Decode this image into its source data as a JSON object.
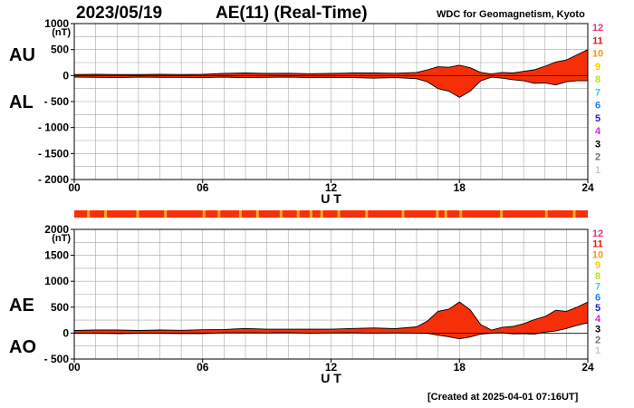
{
  "header": {
    "date": "2023/05/19",
    "title": "AE(11) (Real-Time)",
    "source": "WDC for Geomagnetism, Kyoto"
  },
  "footer": {
    "created": "[Created at 2025-04-01 07:16UT]"
  },
  "colors": {
    "fill": "#f72f08",
    "fill_alt": "#f7a820",
    "grid": "#a8a8a8",
    "curve": "#000000"
  },
  "station_legend": [
    {
      "label": "12",
      "color": "#f7306e"
    },
    {
      "label": "11",
      "color": "#f01010"
    },
    {
      "label": "10",
      "color": "#f79a10"
    },
    {
      "label": "9",
      "color": "#f2d000"
    },
    {
      "label": "8",
      "color": "#b8e020"
    },
    {
      "label": "7",
      "color": "#30d0e8"
    },
    {
      "label": "6",
      "color": "#1e7ef0"
    },
    {
      "label": "5",
      "color": "#2020c8"
    },
    {
      "label": "4",
      "color": "#e020e0"
    },
    {
      "label": "3",
      "color": "#000000"
    },
    {
      "label": "2",
      "color": "#707070"
    },
    {
      "label": "1",
      "color": "#c8c8c8"
    }
  ],
  "chart_data": [
    {
      "type": "area",
      "name": "AU/AL",
      "left_labels": [
        "AU",
        "AL"
      ],
      "ylabel_unit": "(nT)",
      "xlabel": "U T",
      "xlim": [
        0,
        24
      ],
      "ylim": [
        -2000,
        1000
      ],
      "x_ticks": [
        0,
        6,
        12,
        18,
        24
      ],
      "x_tick_labels": [
        "00",
        "06",
        "12",
        "18",
        "24"
      ],
      "y_ticks": [
        1000,
        500,
        0,
        -500,
        -1000,
        -1500,
        -2000
      ],
      "y_tick_labels": [
        "1000",
        "500",
        "0",
        "- 500",
        "- 1000",
        "- 1500",
        "- 2000"
      ],
      "grid": true,
      "x": [
        0,
        1,
        2,
        3,
        4,
        5,
        6,
        7,
        8,
        9,
        10,
        11,
        12,
        13,
        14,
        15,
        16,
        16.5,
        17,
        17.5,
        18,
        18.5,
        19,
        19.5,
        20,
        20.5,
        21,
        21.5,
        22,
        22.5,
        23,
        23.5,
        24
      ],
      "series": [
        {
          "name": "AU",
          "values": [
            20,
            25,
            20,
            20,
            25,
            20,
            25,
            40,
            50,
            40,
            45,
            35,
            40,
            50,
            50,
            45,
            60,
            110,
            170,
            160,
            200,
            150,
            60,
            30,
            60,
            50,
            80,
            110,
            180,
            260,
            300,
            400,
            500
          ]
        },
        {
          "name": "AL",
          "values": [
            -30,
            -35,
            -40,
            -30,
            -35,
            -35,
            -40,
            -30,
            -40,
            -35,
            -30,
            -40,
            -35,
            -40,
            -50,
            -40,
            -60,
            -120,
            -250,
            -300,
            -420,
            -300,
            -100,
            -30,
            -50,
            -80,
            -100,
            -150,
            -140,
            -180,
            -120,
            -100,
            -100
          ]
        }
      ]
    },
    {
      "type": "area",
      "name": "AE/AO",
      "left_labels": [
        "AE",
        "AO"
      ],
      "ylabel_unit": "(nT)",
      "xlabel": "U T",
      "xlim": [
        0,
        24
      ],
      "ylim": [
        -500,
        2000
      ],
      "x_ticks": [
        0,
        6,
        12,
        18,
        24
      ],
      "x_tick_labels": [
        "00",
        "06",
        "12",
        "18",
        "24"
      ],
      "y_ticks": [
        2000,
        1500,
        1000,
        500,
        0,
        -500
      ],
      "y_tick_labels": [
        "2000",
        "1500",
        "1000",
        "500",
        "0",
        "- 500"
      ],
      "grid": true,
      "x": [
        0,
        1,
        2,
        3,
        4,
        5,
        6,
        7,
        8,
        9,
        10,
        11,
        12,
        13,
        14,
        15,
        16,
        16.5,
        17,
        17.5,
        18,
        18.5,
        19,
        19.5,
        20,
        20.5,
        21,
        21.5,
        22,
        22.5,
        23,
        23.5,
        24
      ],
      "series": [
        {
          "name": "AE",
          "values": [
            50,
            60,
            60,
            50,
            60,
            55,
            65,
            70,
            90,
            75,
            75,
            75,
            75,
            90,
            100,
            85,
            120,
            230,
            420,
            460,
            600,
            450,
            160,
            60,
            110,
            130,
            180,
            260,
            320,
            440,
            420,
            500,
            600
          ]
        },
        {
          "name": "AO",
          "values": [
            -5,
            -5,
            -10,
            -5,
            -5,
            -8,
            -8,
            5,
            5,
            3,
            8,
            -3,
            3,
            5,
            0,
            3,
            0,
            -5,
            -40,
            -70,
            -110,
            -75,
            -20,
            0,
            5,
            -15,
            -10,
            -20,
            20,
            40,
            90,
            150,
            200
          ]
        }
      ]
    }
  ]
}
